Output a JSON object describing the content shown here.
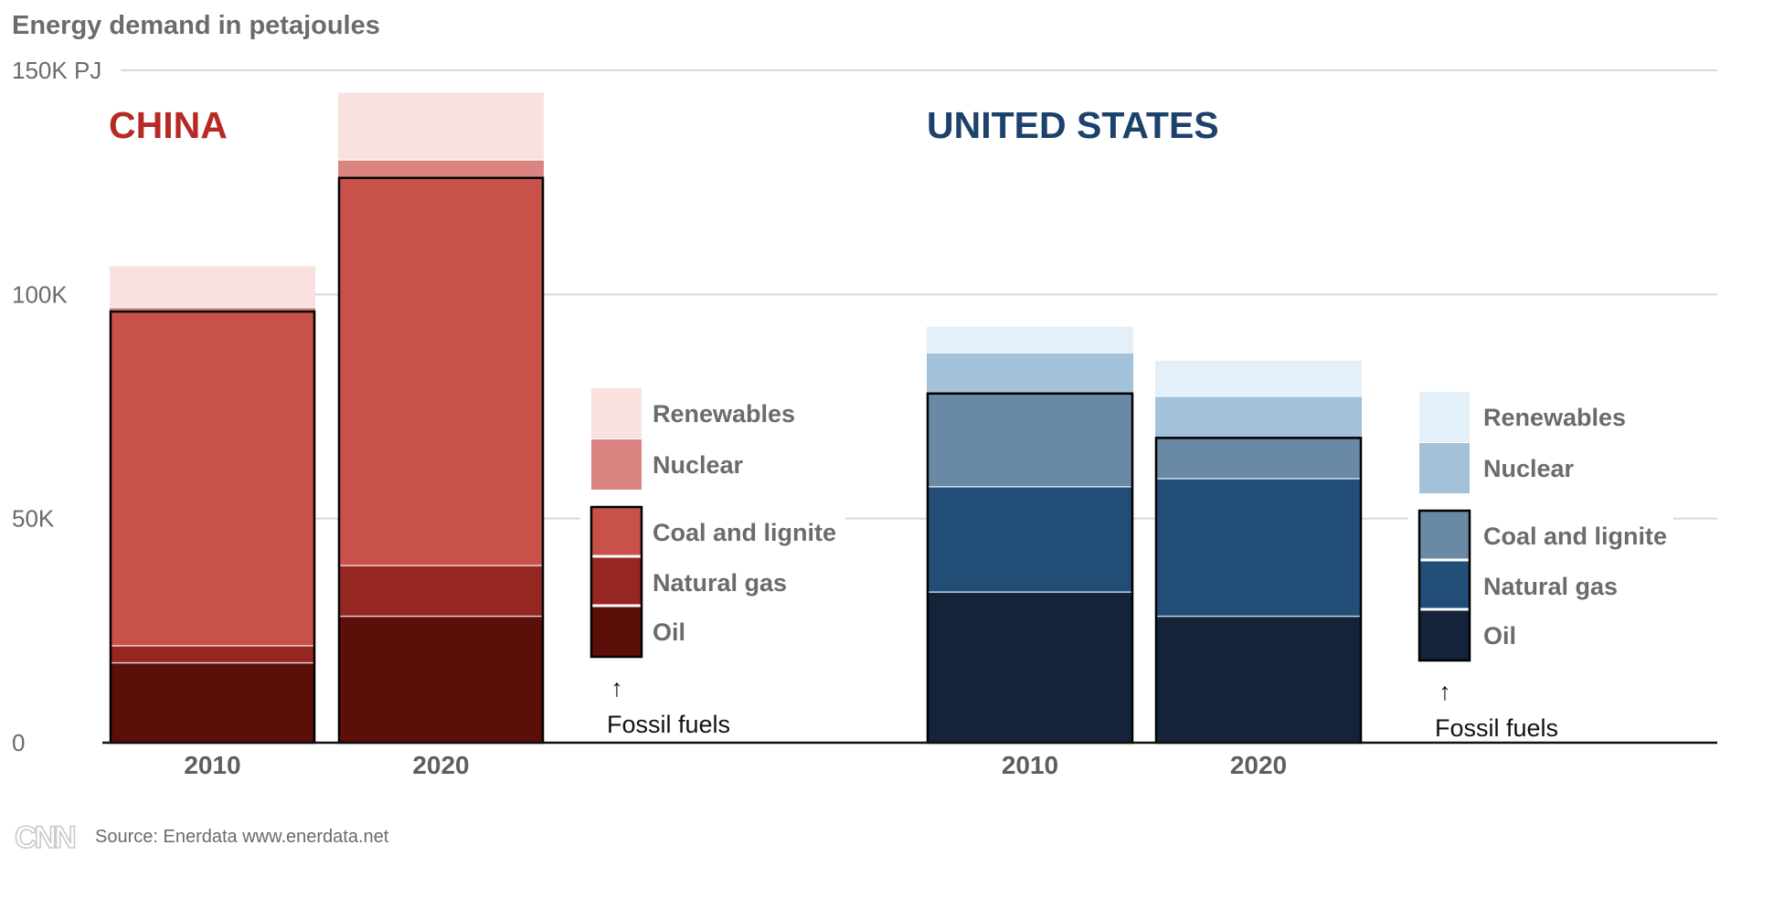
{
  "chart_data": {
    "type": "bar",
    "stacked": true,
    "title": "Energy demand in petajoules",
    "unit": "PJ",
    "ylim": [
      0,
      150000
    ],
    "yticks": [
      0,
      50000,
      100000,
      150000
    ],
    "ytick_labels": [
      "0",
      "50K",
      "100K",
      "150K PJ"
    ],
    "grid": true,
    "legend_position": "right of each group",
    "groups": [
      {
        "name": "CHINA",
        "color": "#b52a25",
        "categories": [
          "2010",
          "2020"
        ],
        "series": [
          {
            "name": "Oil",
            "values": [
              17800,
              28200
            ],
            "color": "#5c0e08"
          },
          {
            "name": "Natural gas",
            "values": [
              3800,
              11300
            ],
            "color": "#962621"
          },
          {
            "name": "Coal and lignite",
            "values": [
              74600,
              86500
            ],
            "color": "#c8514a"
          },
          {
            "name": "Nuclear",
            "values": [
              900,
              4000
            ],
            "color": "#da8582"
          },
          {
            "name": "Renewables",
            "values": [
              9200,
              15000
            ],
            "color": "#f9e1e0"
          }
        ],
        "fossil_totals": [
          96200,
          126000
        ]
      },
      {
        "name": "UNITED STATES",
        "color": "#1c416b",
        "categories": [
          "2010",
          "2020"
        ],
        "series": [
          {
            "name": "Oil",
            "values": [
              33600,
              28200
            ],
            "color": "#14233a"
          },
          {
            "name": "Natural gas",
            "values": [
              23500,
              30700
            ],
            "color": "#224d77"
          },
          {
            "name": "Coal and lignite",
            "values": [
              20800,
              9100
            ],
            "color": "#6a89a5"
          },
          {
            "name": "Nuclear",
            "values": [
              9100,
              9300
            ],
            "color": "#a3c1d9"
          },
          {
            "name": "Renewables",
            "values": [
              5800,
              7900
            ],
            "color": "#e3eff9"
          }
        ],
        "fossil_totals": [
          77900,
          68000
        ]
      }
    ]
  },
  "legend": {
    "items": [
      "Renewables",
      "Nuclear",
      "Coal and lignite",
      "Natural gas",
      "Oil"
    ],
    "fossil_label": "Fossil fuels",
    "arrow": "↑"
  },
  "source": "Source: Enerdata www.enerdata.net",
  "logo": "CNN",
  "colors": {
    "text_gray": "#6b6b6b",
    "grid": "#d8d8d8",
    "axis": "#111111"
  }
}
